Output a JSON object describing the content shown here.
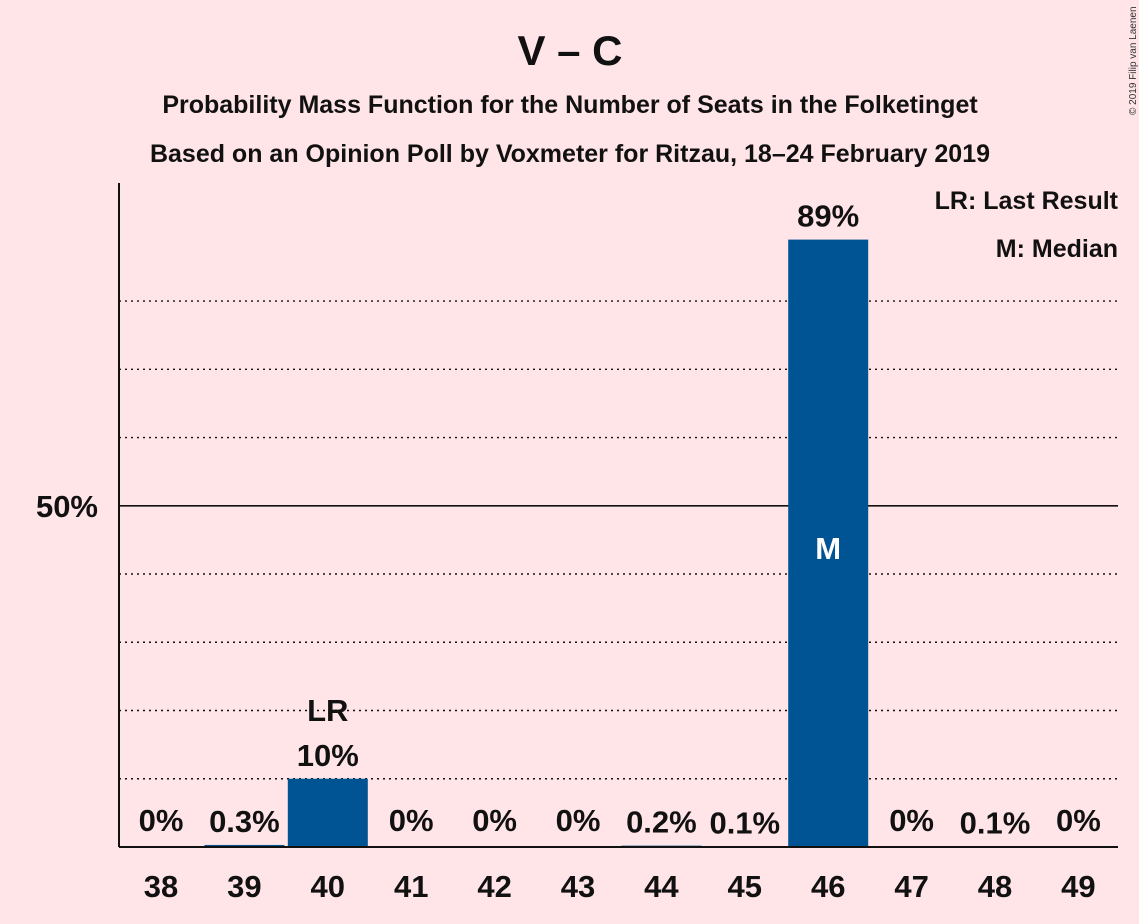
{
  "chart_data": {
    "type": "bar",
    "title": "V – C",
    "subtitle_1": "Probability Mass Function for the Number of Seats in the Folketinget",
    "subtitle_2": "Based on an Opinion Poll by Voxmeter for Ritzau, 18–24 February 2019",
    "copyright": "© 2019 Filip van Laenen",
    "legend": [
      "LR: Last Result",
      "M: Median"
    ],
    "legend_position": "top-right",
    "categories": [
      "38",
      "39",
      "40",
      "41",
      "42",
      "43",
      "44",
      "45",
      "46",
      "47",
      "48",
      "49"
    ],
    "values": [
      0,
      0.3,
      10,
      0,
      0,
      0,
      0.2,
      0.1,
      89,
      0,
      0.1,
      0
    ],
    "value_labels": [
      "0%",
      "0.3%",
      "10%",
      "0%",
      "0%",
      "0%",
      "0.2%",
      "0.1%",
      "89%",
      "0%",
      "0.1%",
      "0%"
    ],
    "ylim": [
      0,
      97
    ],
    "y_tick_label": "50%",
    "y_tick_value": 50,
    "grid": true,
    "grid_lines": [
      10,
      20,
      30,
      40,
      60,
      70,
      80
    ],
    "last_result": {
      "category": "40",
      "label": "LR"
    },
    "median": {
      "category": "46",
      "label": "M"
    },
    "colors": {
      "bar": "#005494",
      "background": "#FFE4E8"
    }
  }
}
